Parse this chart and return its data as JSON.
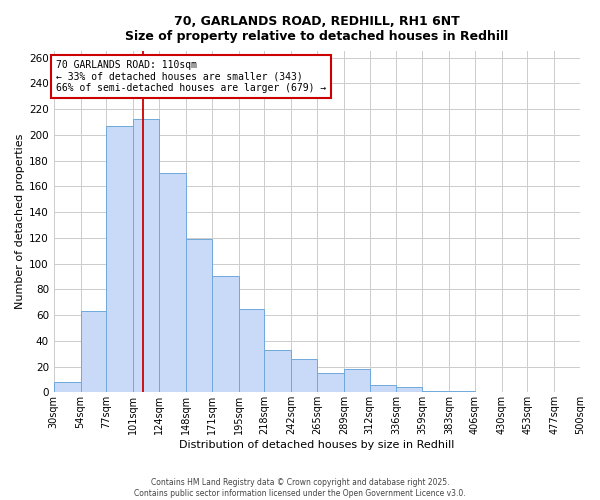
{
  "title_line1": "70, GARLANDS ROAD, REDHILL, RH1 6NT",
  "title_line2": "Size of property relative to detached houses in Redhill",
  "xlabel": "Distribution of detached houses by size in Redhill",
  "ylabel": "Number of detached properties",
  "bar_labels": [
    "30sqm",
    "54sqm",
    "77sqm",
    "101sqm",
    "124sqm",
    "148sqm",
    "171sqm",
    "195sqm",
    "218sqm",
    "242sqm",
    "265sqm",
    "289sqm",
    "312sqm",
    "336sqm",
    "359sqm",
    "383sqm",
    "406sqm",
    "430sqm",
    "453sqm",
    "477sqm",
    "500sqm"
  ],
  "bin_edges": [
    30,
    54,
    77,
    101,
    124,
    148,
    171,
    195,
    218,
    242,
    265,
    289,
    312,
    336,
    359,
    383,
    406,
    430,
    453,
    477,
    500
  ],
  "bar_heights": [
    8,
    63,
    207,
    212,
    170,
    119,
    90,
    65,
    33,
    26,
    15,
    18,
    6,
    4,
    1,
    1,
    0,
    0,
    0,
    0
  ],
  "bar_color": "#c9daf8",
  "bar_edge_color": "#6fa8dc",
  "vline_x": 110,
  "vline_color": "#cc0000",
  "annotation_line1": "70 GARLANDS ROAD: 110sqm",
  "annotation_line2": "← 33% of detached houses are smaller (343)",
  "annotation_line3": "66% of semi-detached houses are larger (679) →",
  "annotation_box_color": "#ffffff",
  "annotation_border_color": "#cc0000",
  "ylim_max": 265,
  "yticks": [
    0,
    20,
    40,
    60,
    80,
    100,
    120,
    140,
    160,
    180,
    200,
    220,
    240,
    260
  ],
  "background_color": "#ffffff",
  "grid_color": "#cccccc",
  "footer_line1": "Contains HM Land Registry data © Crown copyright and database right 2025.",
  "footer_line2": "Contains public sector information licensed under the Open Government Licence v3.0."
}
